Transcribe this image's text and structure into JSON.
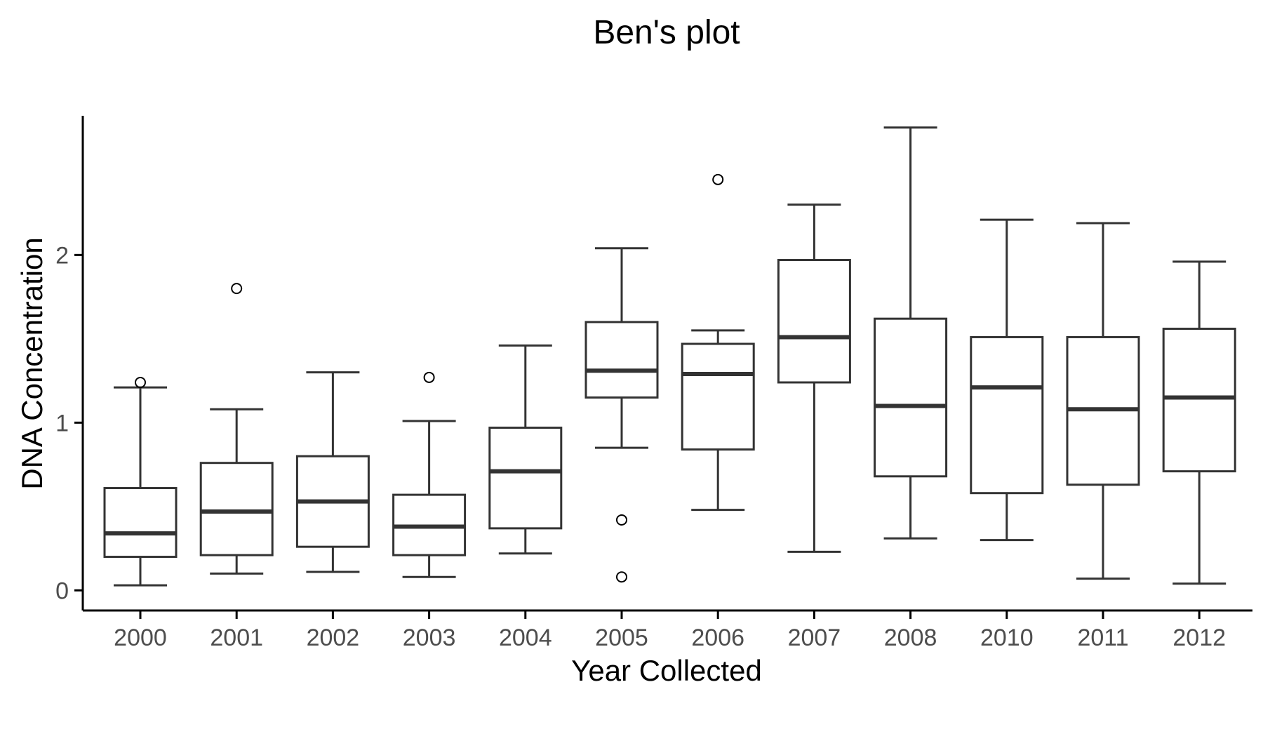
{
  "chart_data": {
    "type": "boxplot",
    "title": "Ben's plot",
    "xlabel": "Year Collected",
    "ylabel": "DNA Concentration",
    "ylim": [
      -0.12,
      2.83
    ],
    "yticks": [
      0,
      1,
      2
    ],
    "grid": false,
    "legend": "none",
    "colors": {
      "box_stroke": "#333333",
      "axis": "#000000",
      "tick_label": "#4d4d4d",
      "title": "#000000",
      "background": "#ffffff"
    },
    "categories": [
      "2000",
      "2001",
      "2002",
      "2003",
      "2004",
      "2005",
      "2006",
      "2007",
      "2008",
      "2010",
      "2011",
      "2012"
    ],
    "boxes": [
      {
        "category": "2000",
        "whisker_low": 0.03,
        "q1": 0.2,
        "median": 0.34,
        "q3": 0.61,
        "whisker_high": 1.21,
        "outliers": [
          1.24
        ]
      },
      {
        "category": "2001",
        "whisker_low": 0.1,
        "q1": 0.21,
        "median": 0.47,
        "q3": 0.76,
        "whisker_high": 1.08,
        "outliers": [
          1.8
        ]
      },
      {
        "category": "2002",
        "whisker_low": 0.11,
        "q1": 0.26,
        "median": 0.53,
        "q3": 0.8,
        "whisker_high": 1.3,
        "outliers": []
      },
      {
        "category": "2003",
        "whisker_low": 0.08,
        "q1": 0.21,
        "median": 0.38,
        "q3": 0.57,
        "whisker_high": 1.01,
        "outliers": [
          1.27
        ]
      },
      {
        "category": "2004",
        "whisker_low": 0.22,
        "q1": 0.37,
        "median": 0.71,
        "q3": 0.97,
        "whisker_high": 1.46,
        "outliers": []
      },
      {
        "category": "2005",
        "whisker_low": 0.85,
        "q1": 1.15,
        "median": 1.31,
        "q3": 1.6,
        "whisker_high": 2.04,
        "outliers": [
          0.42,
          0.08
        ]
      },
      {
        "category": "2006",
        "whisker_low": 0.48,
        "q1": 0.84,
        "median": 1.29,
        "q3": 1.47,
        "whisker_high": 1.55,
        "outliers": [
          2.45
        ]
      },
      {
        "category": "2007",
        "whisker_low": 0.23,
        "q1": 1.24,
        "median": 1.51,
        "q3": 1.97,
        "whisker_high": 2.3,
        "outliers": []
      },
      {
        "category": "2008",
        "whisker_low": 0.31,
        "q1": 0.68,
        "median": 1.1,
        "q3": 1.62,
        "whisker_high": 2.76,
        "outliers": []
      },
      {
        "category": "2010",
        "whisker_low": 0.3,
        "q1": 0.58,
        "median": 1.21,
        "q3": 1.51,
        "whisker_high": 2.21,
        "outliers": []
      },
      {
        "category": "2011",
        "whisker_low": 0.07,
        "q1": 0.63,
        "median": 1.08,
        "q3": 1.51,
        "whisker_high": 2.19,
        "outliers": []
      },
      {
        "category": "2012",
        "whisker_low": 0.04,
        "q1": 0.71,
        "median": 1.15,
        "q3": 1.56,
        "whisker_high": 1.96,
        "outliers": []
      }
    ]
  }
}
